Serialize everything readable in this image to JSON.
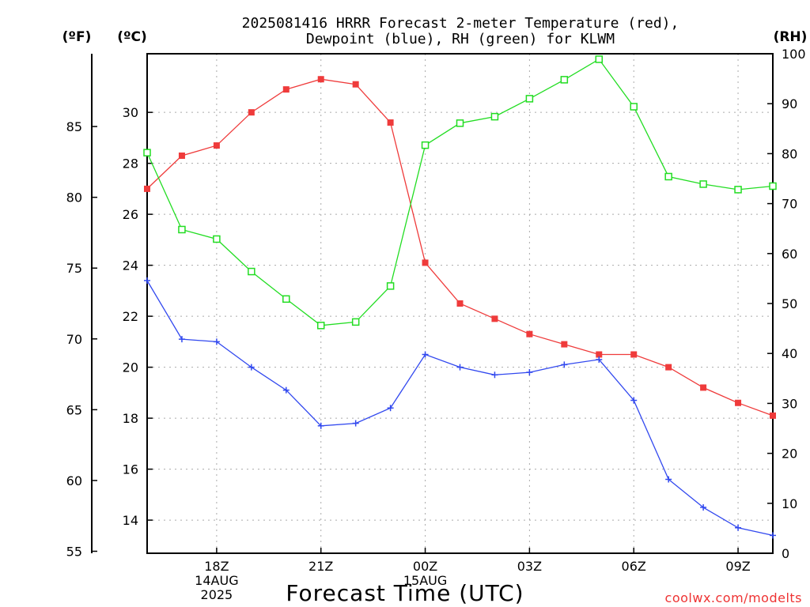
{
  "chart_data": {
    "type": "line",
    "title_line1": "2025081416 HRRR Forecast 2-meter Temperature (red),",
    "title_line2": "Dewpoint (blue), RH (green) for KLWM",
    "xlabel": "Forecast Time (UTC)",
    "left_outer_axis_label": "(ºF)",
    "left_inner_axis_label": "(ºC)",
    "right_axis_label": "(RH)",
    "credit": "coolwx.com/modelts",
    "x_hours": [
      16,
      17,
      18,
      19,
      20,
      21,
      22,
      23,
      24,
      25,
      26,
      27,
      28,
      29,
      30,
      31,
      32,
      33,
      34
    ],
    "x_ticks": [
      {
        "hour": 18,
        "lines": [
          "18Z",
          "14AUG",
          "2025"
        ]
      },
      {
        "hour": 21,
        "lines": [
          "21Z"
        ]
      },
      {
        "hour": 24,
        "lines": [
          "00Z",
          "15AUG"
        ]
      },
      {
        "hour": 27,
        "lines": [
          "03Z"
        ]
      },
      {
        "hour": 30,
        "lines": [
          "06Z"
        ]
      },
      {
        "hour": 33,
        "lines": [
          "09Z"
        ]
      }
    ],
    "xlim": [
      16,
      34
    ],
    "ylim_c": [
      12.7,
      32.3
    ],
    "ylim_rh": [
      0,
      100
    ],
    "y_ticks_c": [
      14,
      16,
      18,
      20,
      22,
      24,
      26,
      28,
      30
    ],
    "y_ticks_f": [
      55,
      60,
      65,
      70,
      75,
      80,
      85
    ],
    "y_ticks_rh": [
      0,
      10,
      20,
      30,
      40,
      50,
      60,
      70,
      80,
      90,
      100
    ],
    "grid": true,
    "series": [
      {
        "name": "Temperature",
        "color": "#ef3b3b",
        "marker": "filled-square",
        "axis": "c",
        "values": [
          27.0,
          28.3,
          28.7,
          30.0,
          30.9,
          31.3,
          31.1,
          29.6,
          24.1,
          22.5,
          21.9,
          21.3,
          20.9,
          20.5,
          20.5,
          20.0,
          19.2,
          18.6,
          18.1
        ]
      },
      {
        "name": "Dewpoint",
        "color": "#3148ef",
        "marker": "plus",
        "axis": "c",
        "values": [
          23.4,
          21.1,
          21.0,
          20.0,
          19.1,
          17.7,
          17.8,
          18.4,
          20.5,
          20.0,
          19.7,
          19.8,
          20.1,
          20.3,
          18.7,
          15.6,
          14.5,
          13.7,
          13.4
        ]
      },
      {
        "name": "RH",
        "color": "#22dd22",
        "marker": "open-square",
        "axis": "rh",
        "values": [
          80.2,
          64.8,
          62.9,
          56.4,
          50.9,
          45.6,
          46.3,
          53.5,
          81.7,
          86.1,
          87.4,
          91.0,
          94.8,
          98.9,
          89.4,
          75.4,
          73.9,
          72.8,
          73.5
        ]
      }
    ]
  }
}
